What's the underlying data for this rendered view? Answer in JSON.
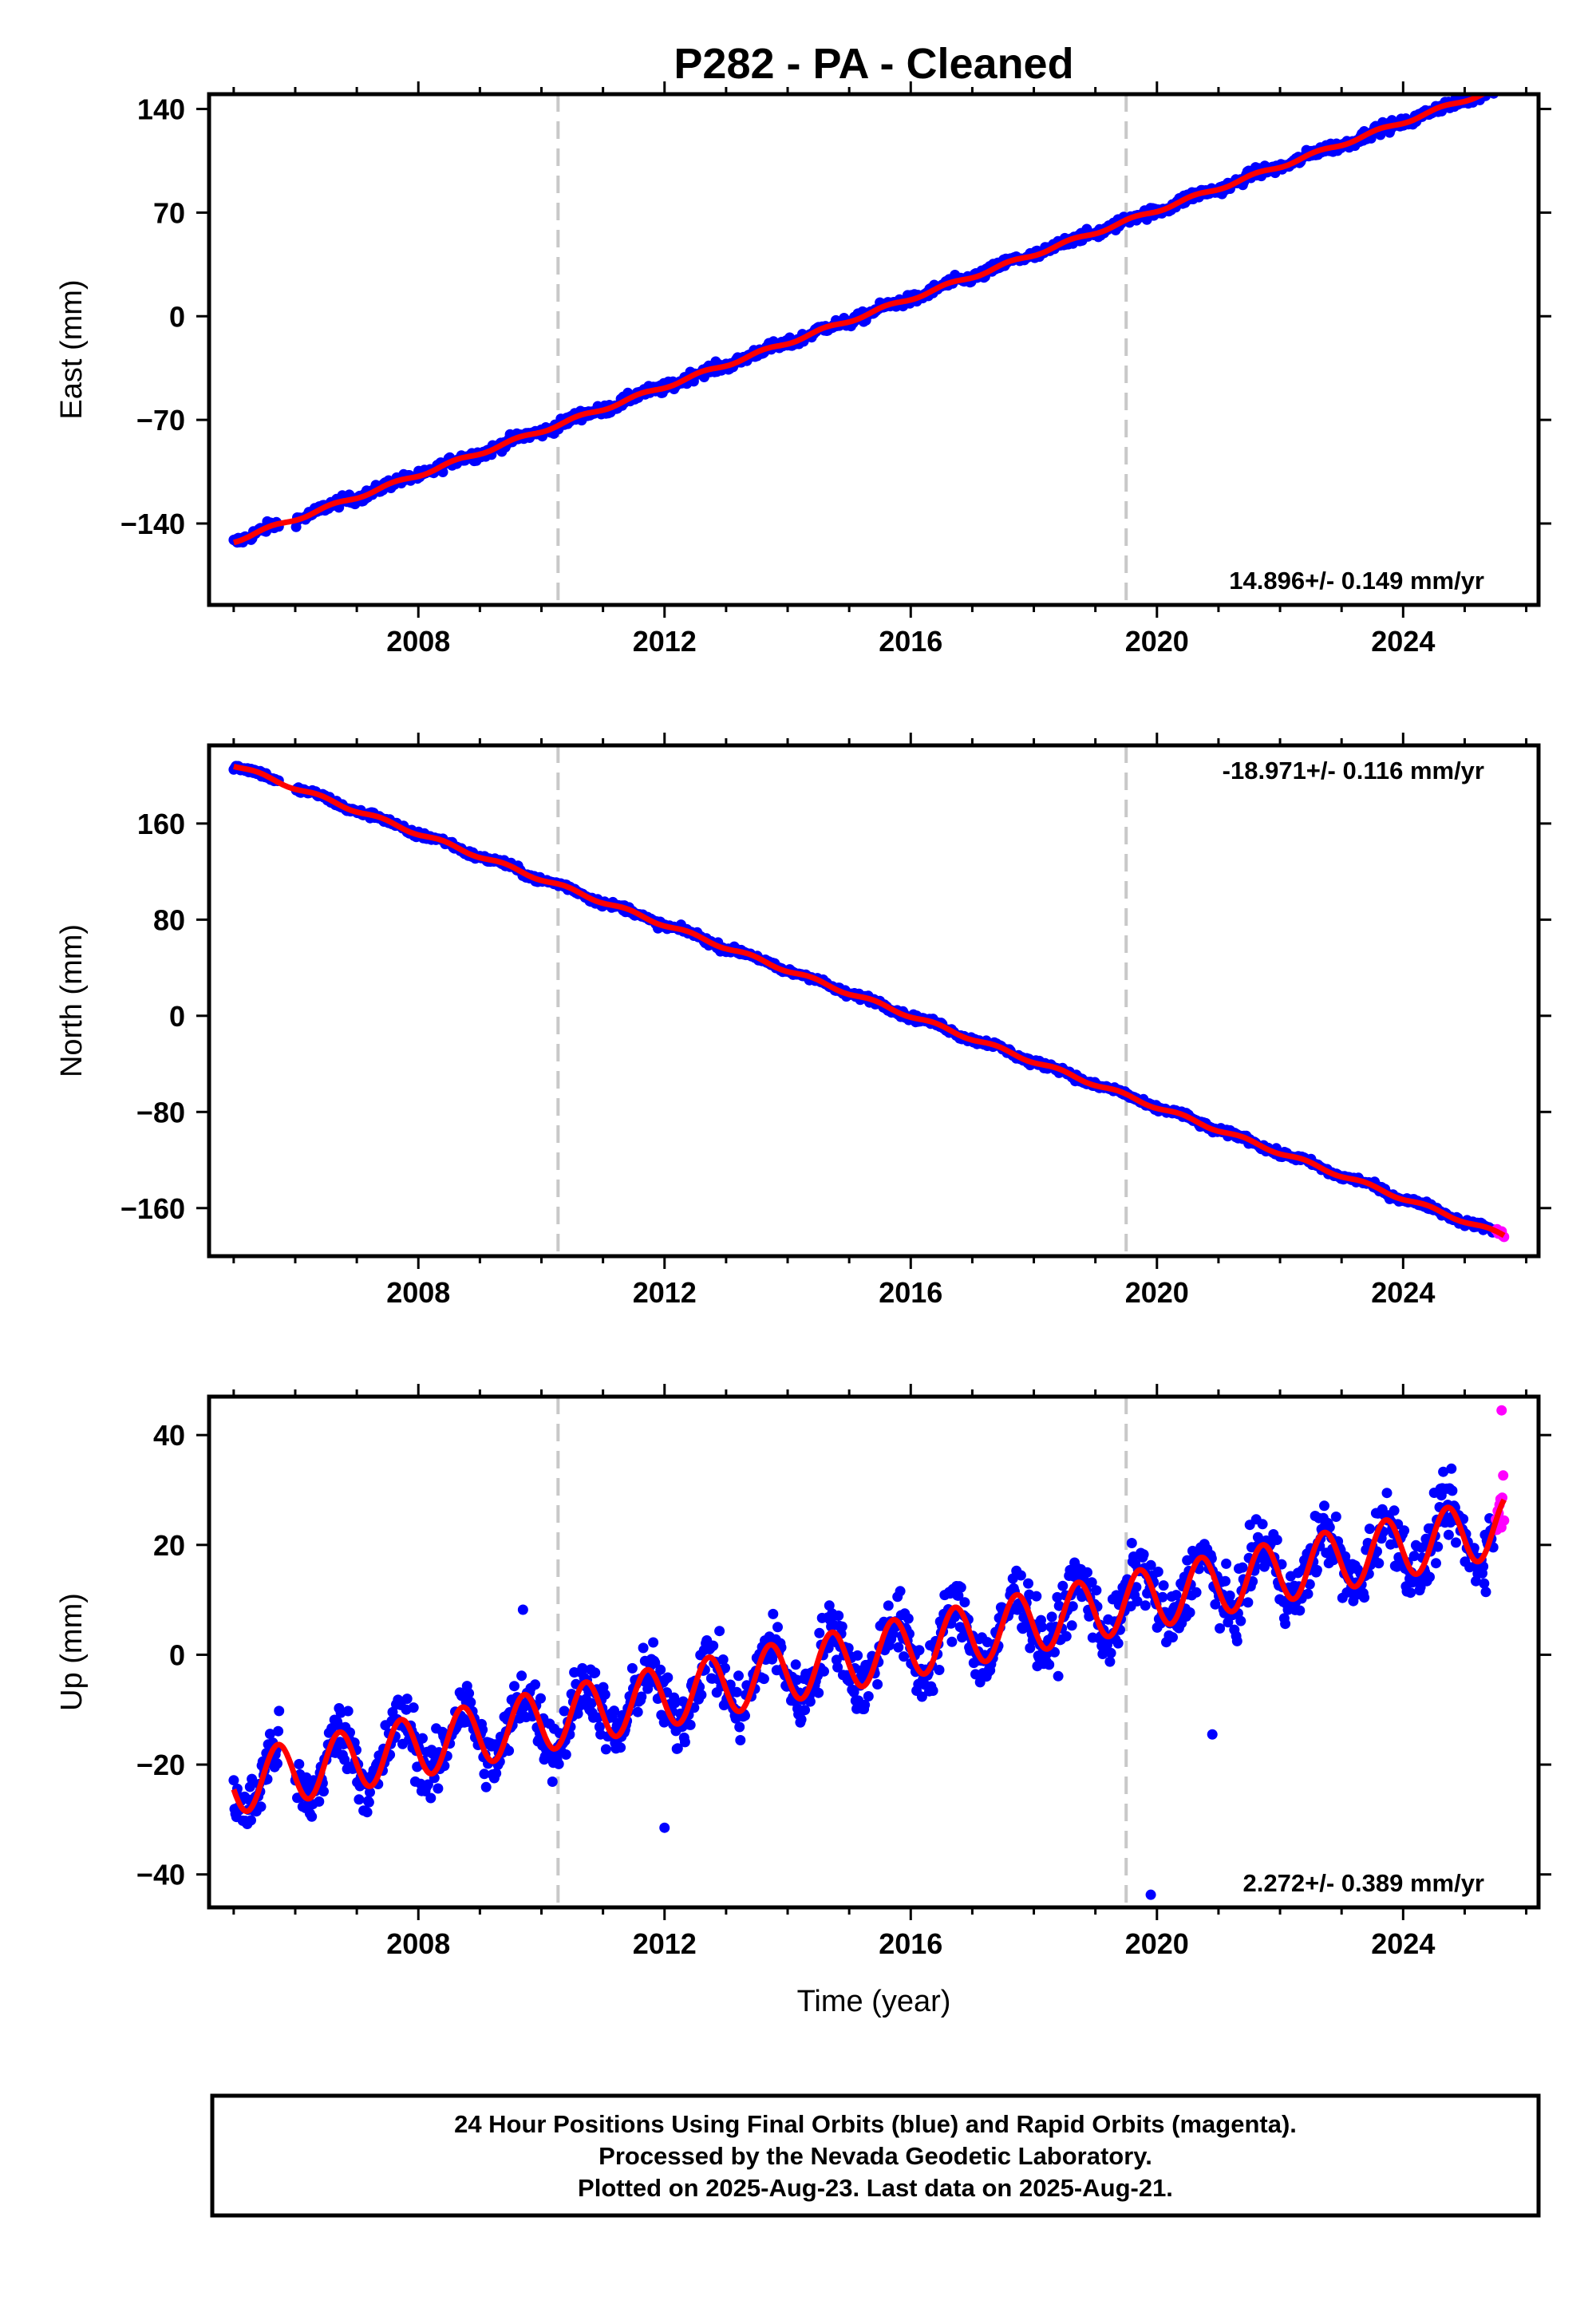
{
  "title": "P282  - PA - Cleaned",
  "footer": {
    "line1": "24 Hour Positions Using Final Orbits (blue) and Rapid Orbits (magenta).",
    "line2": "Processed by the Nevada Geodetic Laboratory.",
    "line3": "Plotted on 2025-Aug-23. Last data on 2025-Aug-21."
  },
  "colors": {
    "final_orbits": "#0000ff",
    "rapid_orbits": "#ff00ff",
    "model": "#ff0000",
    "event_lines": "#c8c8c8"
  },
  "chart_data": [
    {
      "type": "scatter",
      "name": "East",
      "ylabel": "East (mm)",
      "xlabel": "",
      "rate_label": "14.896+/- 0.149 mm/yr",
      "rate_placement": "bottom-right",
      "xlim": [
        2004.6,
        2026.2
      ],
      "ylim": [
        -195,
        150
      ],
      "xticks": [
        2008,
        2012,
        2016,
        2020,
        2024
      ],
      "xtick_labels": [
        "2008",
        "2012",
        "2016",
        "2020",
        "2024"
      ],
      "yticks": [
        -140,
        -70,
        0,
        70,
        140
      ],
      "ytick_labels": [
        "-140",
        "-70",
        "0",
        "70",
        "140"
      ],
      "event_lines_x": [
        2010.27,
        2019.5
      ],
      "data_start": 2005.0,
      "data_gap": [
        2005.75,
        2006.0
      ],
      "data_end": 2025.64,
      "rapid_start": 2025.5,
      "model": {
        "rate": 14.896,
        "value_at_2016": 12,
        "annual_amplitude": 1.2,
        "annual_peak_month_fraction": 0.6,
        "offset_at_event_1": 0,
        "offset_at_event_2": 0
      },
      "scatter": 2.5,
      "point_count": 1100
    },
    {
      "type": "scatter",
      "name": "North",
      "ylabel": "North (mm)",
      "xlabel": "",
      "rate_label": "-18.971+/- 0.116 mm/yr",
      "rate_placement": "top-right",
      "xlim": [
        2004.6,
        2026.2
      ],
      "ylim": [
        -200,
        225
      ],
      "xticks": [
        2008,
        2012,
        2016,
        2020,
        2024
      ],
      "xtick_labels": [
        "2008",
        "2012",
        "2016",
        "2020",
        "2024"
      ],
      "yticks": [
        -160,
        -80,
        0,
        80,
        160
      ],
      "ytick_labels": [
        "-160",
        "-80",
        "0",
        "80",
        "160"
      ],
      "event_lines_x": [
        2010.27,
        2019.5
      ],
      "data_start": 2005.0,
      "data_gap": [
        2005.75,
        2006.0
      ],
      "data_end": 2025.64,
      "rapid_start": 2025.5,
      "model": {
        "rate": -18.971,
        "value_at_2016": 0,
        "annual_amplitude": 1.5,
        "annual_peak_month_fraction": 0.4,
        "offset_at_event_1": 0,
        "offset_at_event_2": 0
      },
      "scatter": 2.0,
      "point_count": 1100
    },
    {
      "type": "scatter",
      "name": "Up",
      "ylabel": "Up (mm)",
      "xlabel": "Time (year)",
      "rate_label": "2.272+/- 0.389 mm/yr",
      "rate_placement": "bottom-right",
      "xlim": [
        2004.6,
        2026.2
      ],
      "ylim": [
        -46,
        47
      ],
      "xticks": [
        2008,
        2012,
        2016,
        2020,
        2024
      ],
      "xtick_labels": [
        "2008",
        "2012",
        "2016",
        "2020",
        "2024"
      ],
      "yticks": [
        -40,
        -20,
        0,
        20,
        40
      ],
      "ytick_labels": [
        "-40",
        "-20",
        "0",
        "20",
        "40"
      ],
      "event_lines_x": [
        2010.27,
        2019.5
      ],
      "data_start": 2005.0,
      "data_gap": [
        2005.75,
        2006.0
      ],
      "data_end": 2025.64,
      "rapid_start": 2025.5,
      "model": {
        "rate": 2.272,
        "value_at_2016": 1.5,
        "annual_amplitude": 5.5,
        "annual_peak_month_fraction": 0.72,
        "offset_at_event_1": 0,
        "offset_at_event_2": 0
      },
      "scatter": 4.0,
      "point_count": 1400,
      "outliers": [
        [
          2012.0,
          -31.5
        ],
        [
          2019.9,
          -43.7
        ],
        [
          2020.9,
          -14.5
        ],
        [
          2009.7,
          8.2
        ],
        [
          2025.6,
          44.5
        ]
      ]
    }
  ]
}
